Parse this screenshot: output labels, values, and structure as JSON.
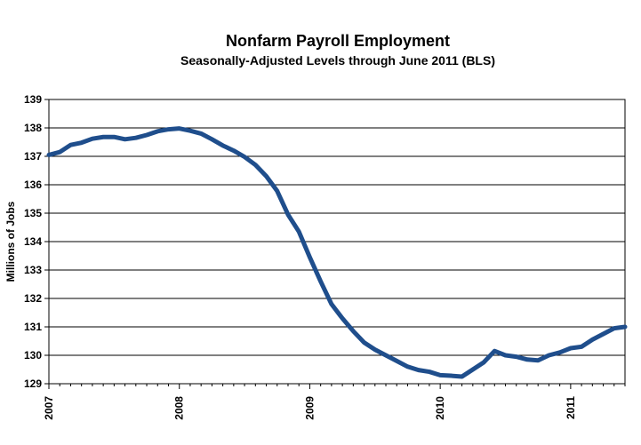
{
  "chart_data": {
    "type": "line",
    "title": "Nonfarm Payroll Employment",
    "subtitle": "Seasonally-Adjusted Levels through June 2011 (BLS)",
    "xlabel": "",
    "ylabel": "Millions of Jobs",
    "ylim": [
      129,
      139
    ],
    "yticks": [
      129,
      130,
      131,
      132,
      133,
      134,
      135,
      136,
      137,
      138,
      139
    ],
    "xticks": [
      "2007",
      "2008",
      "2009",
      "2010",
      "2011"
    ],
    "grid": true,
    "line_color": "#1f4e8c",
    "series": [
      {
        "x": [
          "2007-01",
          "2007-02",
          "2007-03",
          "2007-04",
          "2007-05",
          "2007-06",
          "2007-07",
          "2007-08",
          "2007-09",
          "2007-10",
          "2007-11",
          "2007-12",
          "2008-01",
          "2008-02",
          "2008-03",
          "2008-04",
          "2008-05",
          "2008-06",
          "2008-07",
          "2008-08",
          "2008-09",
          "2008-10",
          "2008-11",
          "2008-12",
          "2009-01",
          "2009-02",
          "2009-03",
          "2009-04",
          "2009-05",
          "2009-06",
          "2009-07",
          "2009-08",
          "2009-09",
          "2009-10",
          "2009-11",
          "2009-12",
          "2010-01",
          "2010-02",
          "2010-03",
          "2010-04",
          "2010-05",
          "2010-06",
          "2010-07",
          "2010-08",
          "2010-09",
          "2010-10",
          "2010-11",
          "2010-12",
          "2011-01",
          "2011-02",
          "2011-03",
          "2011-04",
          "2011-05",
          "2011-06"
        ],
        "values": [
          137.05,
          137.15,
          137.4,
          137.48,
          137.62,
          137.68,
          137.68,
          137.6,
          137.65,
          137.75,
          137.88,
          137.95,
          137.98,
          137.9,
          137.8,
          137.6,
          137.38,
          137.2,
          136.98,
          136.7,
          136.3,
          135.78,
          134.95,
          134.35,
          133.45,
          132.6,
          131.8,
          131.3,
          130.85,
          130.45,
          130.2,
          130.0,
          129.8,
          129.6,
          129.48,
          129.42,
          129.3,
          129.28,
          129.25,
          129.5,
          129.75,
          130.15,
          130.0,
          129.95,
          129.85,
          129.82,
          130.0,
          130.1,
          130.25,
          130.3,
          130.55,
          130.75,
          130.95,
          131.0
        ]
      }
    ]
  }
}
